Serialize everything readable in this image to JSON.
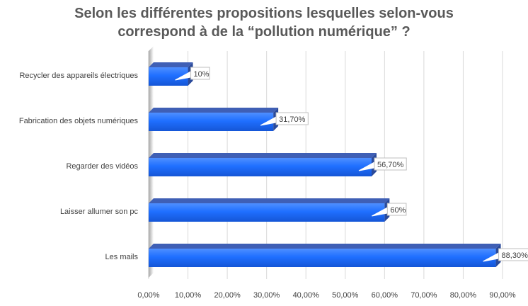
{
  "chart_data": {
    "type": "bar",
    "orientation": "horizontal",
    "title_lines": [
      "Selon les différentes propositions lesquelles selon-vous",
      "correspond à de la “pollution numérique” ?"
    ],
    "categories": [
      "Recycler des appareils électriques",
      "Fabrication des objets numériques",
      "Regarder des vidéos",
      "Laisser allumer son pc",
      "Les mails"
    ],
    "values": [
      10,
      31.7,
      56.7,
      60,
      88.3
    ],
    "data_labels": [
      "10%",
      "31,70%",
      "56,70%",
      "60%",
      "88,30%"
    ],
    "x_ticks": [
      "0,00%",
      "10,00%",
      "20,00%",
      "30,00%",
      "40,00%",
      "50,00%",
      "60,00%",
      "70,00%",
      "80,00%",
      "90,00%"
    ],
    "xlim": [
      0,
      90
    ],
    "grid": true,
    "legend": "none",
    "colors": {
      "bar_front": "#1f6fff",
      "bar_top": "#3f5fb5",
      "bar_side": "#2a4a9a",
      "grid": "#d9d9d9",
      "wall": "#7f7f7f",
      "title": "#595959",
      "text": "#404040"
    }
  }
}
